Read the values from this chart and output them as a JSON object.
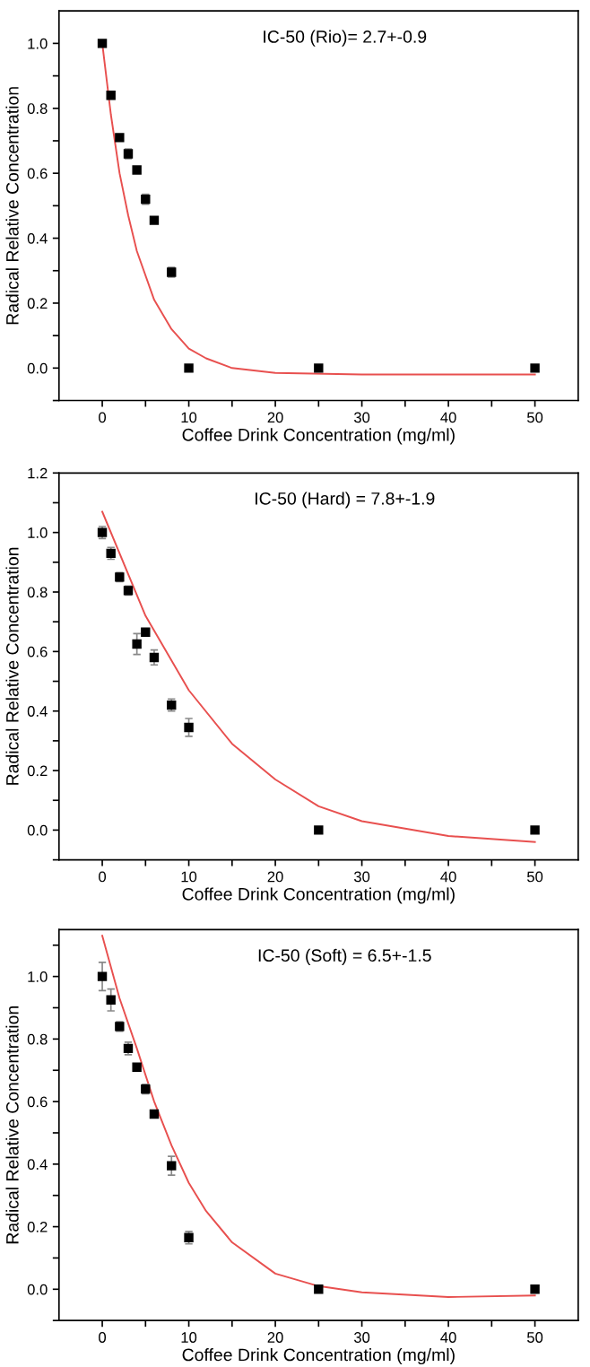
{
  "chart_data": [
    {
      "type": "scatter",
      "xlabel": "Coffee Drink Concentration (mg/ml)",
      "ylabel": "Radical Relative Concentration",
      "annotations": [
        "IC-50 (Rio)= 2.7+-0.9"
      ],
      "grid": false,
      "legend": false,
      "xlim": [
        -5,
        55
      ],
      "ylim": [
        -0.1,
        1.1
      ],
      "xticks": [
        0,
        {
          "value": 5,
          "label": null
        },
        10,
        {
          "value": 15,
          "label": null
        },
        20,
        {
          "value": 25,
          "label": null
        },
        30,
        {
          "value": 35,
          "label": null
        },
        40,
        {
          "value": 45,
          "label": null
        },
        50
      ],
      "yticks": [
        {
          "value": -0.1,
          "label": null
        },
        {
          "value": 0,
          "label": "0.0"
        },
        {
          "value": 0.1,
          "label": null
        },
        0.2,
        {
          "value": 0.3,
          "label": null
        },
        0.4,
        {
          "value": 0.5,
          "label": null
        },
        0.6,
        {
          "value": 0.7,
          "label": null
        },
        0.8,
        {
          "value": 0.9,
          "label": null
        },
        {
          "value": 1,
          "label": "1.0"
        }
      ],
      "series": [
        {
          "marker": "square",
          "color": "#000000",
          "x": [
            0,
            1,
            2,
            3,
            4,
            5,
            6,
            8,
            10,
            25,
            50
          ],
          "values": [
            1.0,
            0.84,
            0.71,
            0.66,
            0.61,
            0.52,
            0.455,
            0.295,
            0,
            0,
            0
          ],
          "errors": [
            0.01,
            0.01,
            0.01,
            0.015,
            0.01,
            0.015,
            0.01,
            0.015,
            0.01,
            0.01,
            0.01
          ]
        },
        {
          "type": "line",
          "color": "#e8504f",
          "x": [
            0,
            1,
            2,
            3,
            4,
            6,
            8,
            10,
            12,
            15,
            20,
            30,
            50
          ],
          "values": [
            1.0,
            0.78,
            0.6,
            0.47,
            0.36,
            0.21,
            0.12,
            0.06,
            0.03,
            0.0,
            -0.015,
            -0.02,
            -0.02
          ]
        }
      ]
    },
    {
      "type": "scatter",
      "xlabel": "Coffee Drink Concentration (mg/ml)",
      "ylabel": "Radical Relative Concentration",
      "annotations": [
        "IC-50 (Hard) = 7.8+-1.9"
      ],
      "grid": false,
      "legend": false,
      "xlim": [
        -5,
        55
      ],
      "ylim": [
        -0.1,
        1.2
      ],
      "xticks": [
        0,
        {
          "value": 5,
          "label": null
        },
        10,
        {
          "value": 15,
          "label": null
        },
        20,
        {
          "value": 25,
          "label": null
        },
        30,
        {
          "value": 35,
          "label": null
        },
        40,
        {
          "value": 45,
          "label": null
        },
        50
      ],
      "yticks": [
        {
          "value": -0.1,
          "label": null
        },
        {
          "value": 0,
          "label": "0.0"
        },
        {
          "value": 0.1,
          "label": null
        },
        0.2,
        {
          "value": 0.3,
          "label": null
        },
        0.4,
        {
          "value": 0.5,
          "label": null
        },
        0.6,
        {
          "value": 0.7,
          "label": null
        },
        0.8,
        {
          "value": 0.9,
          "label": null
        },
        {
          "value": 1,
          "label": "1.0"
        },
        {
          "value": 1.1,
          "label": null
        },
        1.2
      ],
      "series": [
        {
          "marker": "square",
          "color": "#000000",
          "x": [
            0,
            1,
            2,
            3,
            4,
            5,
            6,
            8,
            10,
            25,
            50
          ],
          "values": [
            1.0,
            0.93,
            0.85,
            0.805,
            0.625,
            0.665,
            0.58,
            0.42,
            0.345,
            0,
            0
          ],
          "errors": [
            0.02,
            0.02,
            0.015,
            0.015,
            0.035,
            0.01,
            0.025,
            0.02,
            0.03,
            0.01,
            0.01
          ]
        },
        {
          "type": "line",
          "color": "#e8504f",
          "x": [
            0,
            5,
            10,
            15,
            20,
            25,
            30,
            40,
            50
          ],
          "values": [
            1.07,
            0.72,
            0.47,
            0.29,
            0.17,
            0.08,
            0.03,
            -0.02,
            -0.04
          ]
        }
      ]
    },
    {
      "type": "scatter",
      "xlabel": "Coffee Drink Concentration (mg/ml)",
      "ylabel": "Radical Relative Concentration",
      "annotations": [
        "IC-50 (Soft) = 6.5+-1.5"
      ],
      "grid": false,
      "legend": false,
      "xlim": [
        -5,
        55
      ],
      "ylim": [
        -0.1,
        1.15
      ],
      "xticks": [
        0,
        {
          "value": 5,
          "label": null
        },
        10,
        {
          "value": 15,
          "label": null
        },
        20,
        {
          "value": 25,
          "label": null
        },
        30,
        {
          "value": 35,
          "label": null
        },
        40,
        {
          "value": 45,
          "label": null
        },
        50
      ],
      "yticks": [
        {
          "value": -0.1,
          "label": null
        },
        {
          "value": 0,
          "label": "0.0"
        },
        {
          "value": 0.1,
          "label": null
        },
        0.2,
        {
          "value": 0.3,
          "label": null
        },
        0.4,
        {
          "value": 0.5,
          "label": null
        },
        0.6,
        {
          "value": 0.7,
          "label": null
        },
        0.8,
        {
          "value": 0.9,
          "label": null
        },
        {
          "value": 1,
          "label": "1.0"
        },
        {
          "value": 1.1,
          "label": null
        }
      ],
      "series": [
        {
          "marker": "square",
          "color": "#000000",
          "x": [
            0,
            1,
            2,
            3,
            4,
            5,
            6,
            8,
            10,
            25,
            50
          ],
          "values": [
            1.0,
            0.925,
            0.84,
            0.77,
            0.71,
            0.64,
            0.56,
            0.395,
            0.165,
            0,
            0
          ],
          "errors": [
            0.045,
            0.035,
            0.015,
            0.02,
            0.01,
            0.015,
            0.01,
            0.03,
            0.02,
            0.01,
            0.01
          ]
        },
        {
          "type": "line",
          "color": "#e8504f",
          "x": [
            0,
            2,
            4,
            6,
            8,
            10,
            12,
            15,
            20,
            25,
            30,
            40,
            50
          ],
          "values": [
            1.13,
            0.93,
            0.77,
            0.6,
            0.46,
            0.34,
            0.25,
            0.15,
            0.05,
            0.01,
            -0.01,
            -0.025,
            -0.02
          ]
        }
      ]
    }
  ]
}
